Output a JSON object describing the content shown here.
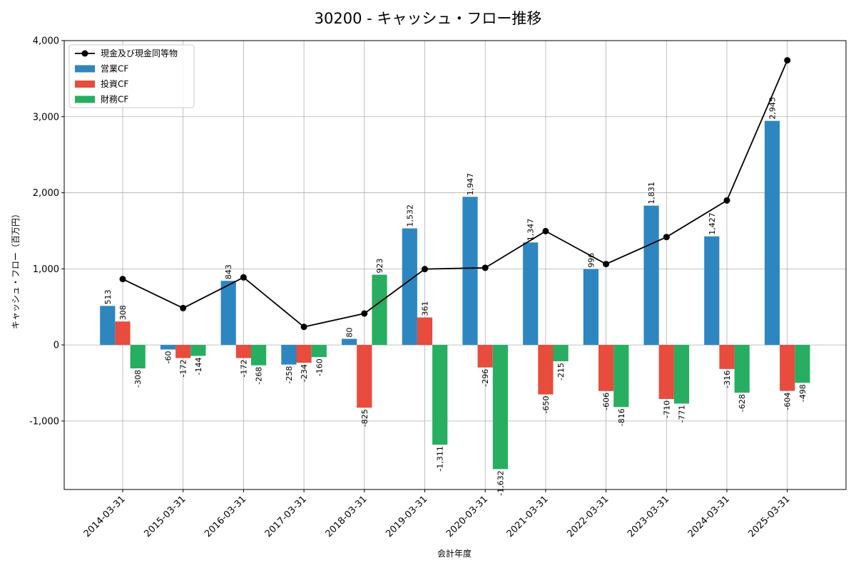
{
  "chart_data": {
    "type": "bar",
    "title": "30200 - キャッシュ・フロー推移",
    "xlabel": "会計年度",
    "ylabel": "キャッシュ・フロー（百万円）",
    "ylim": [
      -1900,
      4000
    ],
    "yticks": [
      -1000,
      0,
      1000,
      2000,
      3000,
      4000
    ],
    "ytick_labels": [
      "-1,000",
      "0",
      "1,000",
      "2,000",
      "3,000",
      "4,000"
    ],
    "grid": true,
    "legend_position": "top-left",
    "categories": [
      "2014-03-31",
      "2015-03-31",
      "2016-03-31",
      "2017-03-31",
      "2018-03-31",
      "2019-03-31",
      "2020-03-31",
      "2021-03-31",
      "2022-03-31",
      "2023-03-31",
      "2024-03-31",
      "2025-03-31"
    ],
    "series": [
      {
        "name": "営業CF",
        "kind": "bar",
        "color": "#2e86c1",
        "values": [
          513,
          -60,
          843,
          -258,
          80,
          1532,
          1947,
          1347,
          996,
          1831,
          1427,
          2945
        ],
        "labels": [
          "513",
          "-60",
          "843",
          "-258",
          "80",
          "1,532",
          "1,947",
          "1,347",
          "996",
          "1,831",
          "1,427",
          "2,945"
        ]
      },
      {
        "name": "投資CF",
        "kind": "bar",
        "color": "#e74c3c",
        "values": [
          308,
          -172,
          -172,
          -234,
          -825,
          361,
          -296,
          -650,
          -606,
          -710,
          -316,
          -604
        ],
        "labels": [
          "308",
          "-172",
          "-172",
          "-234",
          "-825",
          "361",
          "-296",
          "-650",
          "-606",
          "-710",
          "-316",
          "-604"
        ]
      },
      {
        "name": "財務CF",
        "kind": "bar",
        "color": "#27ae60",
        "values": [
          -308,
          -144,
          -268,
          -160,
          923,
          -1311,
          -1632,
          -215,
          -816,
          -771,
          -628,
          -498
        ],
        "labels": [
          "-308",
          "-144",
          "-268",
          "-160",
          "923",
          "-1,311",
          "-1,632",
          "-215",
          "-816",
          "-771",
          "-628",
          "-498"
        ]
      },
      {
        "name": "現金及び現金同等物",
        "kind": "line",
        "color": "#000000",
        "values": [
          866,
          484,
          888,
          237,
          413,
          997,
          1014,
          1496,
          1063,
          1418,
          1899,
          3741
        ]
      }
    ]
  }
}
